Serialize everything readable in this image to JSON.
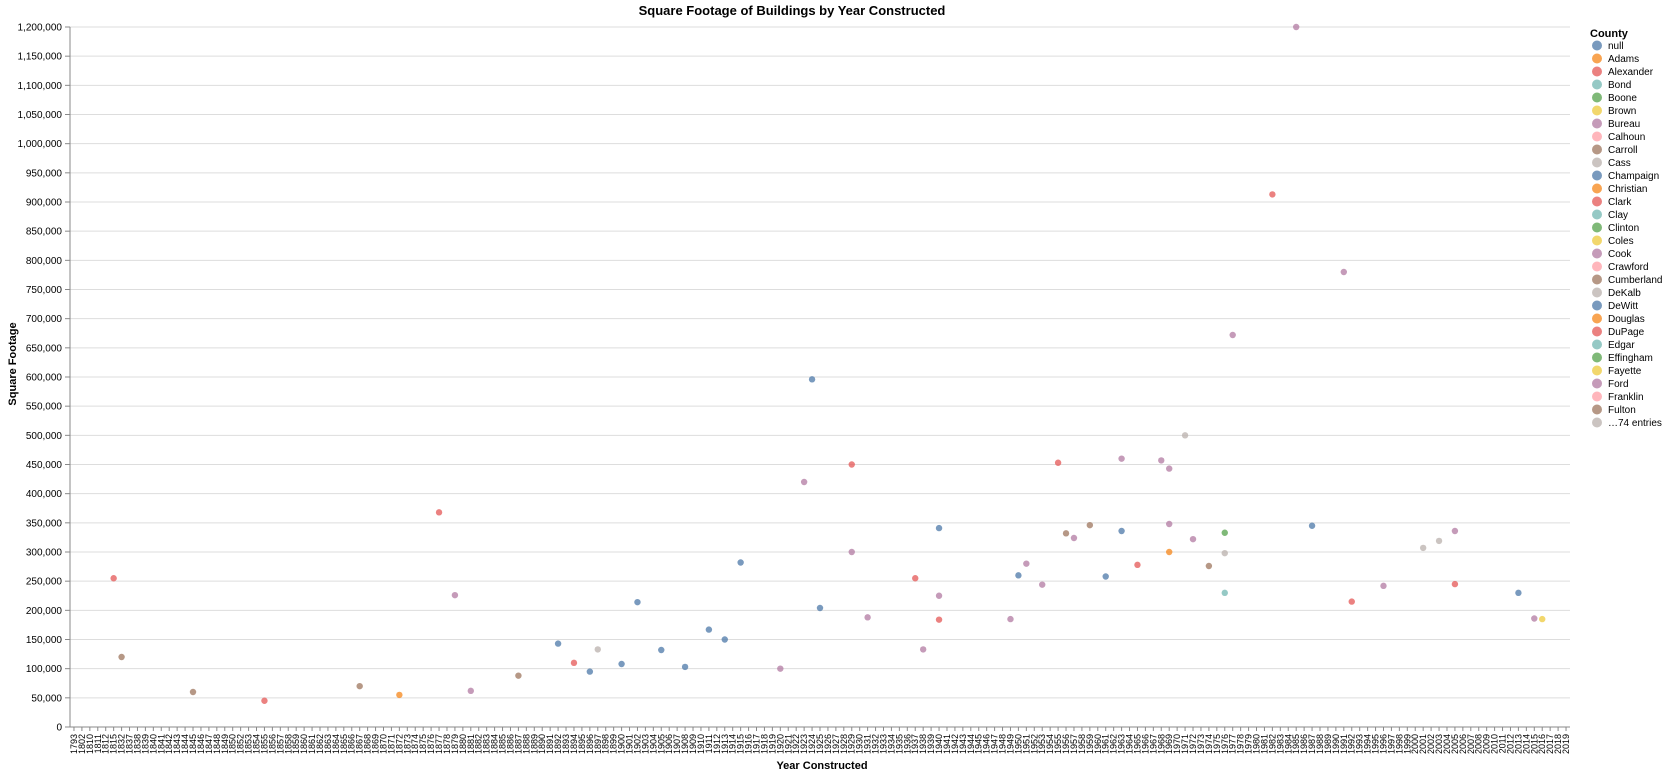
{
  "chart_data": {
    "type": "scatter",
    "title": "Square Footage of Buildings by Year Constructed",
    "xlabel": "Year Constructed",
    "ylabel": "Square Footage",
    "ylim": [
      0,
      1200000
    ],
    "y_ticks": [
      "0",
      "50,000",
      "100,000",
      "150,000",
      "200,000",
      "250,000",
      "300,000",
      "350,000",
      "400,000",
      "450,000",
      "500,000",
      "550,000",
      "600,000",
      "650,000",
      "700,000",
      "750,000",
      "800,000",
      "850,000",
      "900,000",
      "950,000",
      "1,000,000",
      "1,050,000",
      "1,100,000",
      "1,150,000",
      "1,200,000"
    ],
    "x_categories": [
      "1793",
      "1802",
      "1810",
      "1811",
      "1812",
      "1815",
      "1832",
      "1837",
      "1838",
      "1839",
      "1840",
      "1841",
      "1842",
      "1843",
      "1844",
      "1845",
      "1846",
      "1847",
      "1848",
      "1849",
      "1850",
      "1852",
      "1853",
      "1854",
      "1855",
      "1856",
      "1857",
      "1858",
      "1859",
      "1860",
      "1861",
      "1862",
      "1863",
      "1864",
      "1865",
      "1866",
      "1867",
      "1868",
      "1869",
      "1870",
      "1871",
      "1872",
      "1873",
      "1874",
      "1875",
      "1876",
      "1877",
      "1878",
      "1879",
      "1880",
      "1881",
      "1882",
      "1883",
      "1884",
      "1885",
      "1886",
      "1887",
      "1888",
      "1889",
      "1890",
      "1891",
      "1892",
      "1893",
      "1894",
      "1895",
      "1896",
      "1897",
      "1898",
      "1899",
      "1900",
      "1901",
      "1902",
      "1903",
      "1904",
      "1905",
      "1906",
      "1907",
      "1908",
      "1909",
      "1910",
      "1911",
      "1912",
      "1913",
      "1914",
      "1915",
      "1916",
      "1917",
      "1918",
      "1919",
      "1920",
      "1921",
      "1922",
      "1923",
      "1924",
      "1925",
      "1926",
      "1927",
      "1928",
      "1929",
      "1930",
      "1931",
      "1932",
      "1933",
      "1934",
      "1935",
      "1936",
      "1937",
      "1938",
      "1939",
      "1940",
      "1941",
      "1942",
      "1943",
      "1944",
      "1945",
      "1946",
      "1947",
      "1948",
      "1949",
      "1950",
      "1951",
      "1952",
      "1953",
      "1954",
      "1955",
      "1956",
      "1957",
      "1958",
      "1959",
      "1960",
      "1961",
      "1962",
      "1963",
      "1964",
      "1965",
      "1966",
      "1967",
      "1968",
      "1969",
      "1970",
      "1971",
      "1972",
      "1973",
      "1974",
      "1975",
      "1976",
      "1977",
      "1978",
      "1979",
      "1980",
      "1981",
      "1982",
      "1983",
      "1984",
      "1985",
      "1986",
      "1987",
      "1988",
      "1989",
      "1990",
      "1991",
      "1992",
      "1993",
      "1994",
      "1995",
      "1996",
      "1997",
      "1998",
      "1999",
      "2000",
      "2001",
      "2002",
      "2003",
      "2004",
      "2005",
      "2006",
      "2007",
      "2008",
      "2009",
      "2010",
      "2011",
      "2012",
      "2013",
      "2014",
      "2015",
      "2016",
      "2017",
      "2018",
      "2019"
    ],
    "legend": {
      "title": "County",
      "placement": "right",
      "entries": [
        {
          "name": "null",
          "color": "#4c78a8"
        },
        {
          "name": "Adams",
          "color": "#f58518"
        },
        {
          "name": "Alexander",
          "color": "#e45756"
        },
        {
          "name": "Bond",
          "color": "#72b7b2"
        },
        {
          "name": "Boone",
          "color": "#54a24b"
        },
        {
          "name": "Brown",
          "color": "#eeca3b"
        },
        {
          "name": "Bureau",
          "color": "#b279a2"
        },
        {
          "name": "Calhoun",
          "color": "#ff9da6"
        },
        {
          "name": "Carroll",
          "color": "#9d755d"
        },
        {
          "name": "Cass",
          "color": "#bab0ac"
        },
        {
          "name": "Champaign",
          "color": "#4c78a8"
        },
        {
          "name": "Christian",
          "color": "#f58518"
        },
        {
          "name": "Clark",
          "color": "#e45756"
        },
        {
          "name": "Clay",
          "color": "#72b7b2"
        },
        {
          "name": "Clinton",
          "color": "#54a24b"
        },
        {
          "name": "Coles",
          "color": "#eeca3b"
        },
        {
          "name": "Cook",
          "color": "#b279a2"
        },
        {
          "name": "Crawford",
          "color": "#ff9da6"
        },
        {
          "name": "Cumberland",
          "color": "#9d755d"
        },
        {
          "name": "DeKalb",
          "color": "#bab0ac"
        },
        {
          "name": "DeWitt",
          "color": "#4c78a8"
        },
        {
          "name": "Douglas",
          "color": "#f58518"
        },
        {
          "name": "DuPage",
          "color": "#e45756"
        },
        {
          "name": "Edgar",
          "color": "#72b7b2"
        },
        {
          "name": "Effingham",
          "color": "#54a24b"
        },
        {
          "name": "Fayette",
          "color": "#eeca3b"
        },
        {
          "name": "Ford",
          "color": "#b279a2"
        },
        {
          "name": "Franklin",
          "color": "#ff9da6"
        },
        {
          "name": "Fulton",
          "color": "#9d755d"
        },
        {
          "name": "…74 entries",
          "color": "#bab0ac"
        }
      ]
    },
    "series": [
      {
        "name": "notable_points",
        "points": [
          {
            "x": "1815",
            "y": 255000,
            "c": 2
          },
          {
            "x": "1832",
            "y": 120000,
            "c": 8
          },
          {
            "x": "1845",
            "y": 60000,
            "c": 8
          },
          {
            "x": "1855",
            "y": 45000,
            "c": 2
          },
          {
            "x": "1867",
            "y": 70000,
            "c": 8
          },
          {
            "x": "1872",
            "y": 55000,
            "c": 1
          },
          {
            "x": "1877",
            "y": 368000,
            "c": 2
          },
          {
            "x": "1879",
            "y": 226000,
            "c": 6
          },
          {
            "x": "1881",
            "y": 62000,
            "c": 6
          },
          {
            "x": "1887",
            "y": 88000,
            "c": 8
          },
          {
            "x": "1892",
            "y": 143000,
            "c": 0
          },
          {
            "x": "1894",
            "y": 110000,
            "c": 2
          },
          {
            "x": "1896",
            "y": 95000,
            "c": 0
          },
          {
            "x": "1897",
            "y": 133000,
            "c": 9
          },
          {
            "x": "1900",
            "y": 108000,
            "c": 0
          },
          {
            "x": "1902",
            "y": 214000,
            "c": 0
          },
          {
            "x": "1905",
            "y": 132000,
            "c": 0
          },
          {
            "x": "1908",
            "y": 103000,
            "c": 0
          },
          {
            "x": "1911",
            "y": 167000,
            "c": 0
          },
          {
            "x": "1913",
            "y": 150000,
            "c": 0
          },
          {
            "x": "1915",
            "y": 282000,
            "c": 0
          },
          {
            "x": "1920",
            "y": 100000,
            "c": 6
          },
          {
            "x": "1923",
            "y": 420000,
            "c": 6
          },
          {
            "x": "1924",
            "y": 596000,
            "c": 0
          },
          {
            "x": "1925",
            "y": 204000,
            "c": 0
          },
          {
            "x": "1929",
            "y": 450000,
            "c": 2
          },
          {
            "x": "1929",
            "y": 300000,
            "c": 6
          },
          {
            "x": "1931",
            "y": 188000,
            "c": 6
          },
          {
            "x": "1937",
            "y": 255000,
            "c": 2
          },
          {
            "x": "1938",
            "y": 133000,
            "c": 6
          },
          {
            "x": "1940",
            "y": 341000,
            "c": 0
          },
          {
            "x": "1940",
            "y": 225000,
            "c": 6
          },
          {
            "x": "1940",
            "y": 184000,
            "c": 2
          },
          {
            "x": "1949",
            "y": 185000,
            "c": 6
          },
          {
            "x": "1950",
            "y": 260000,
            "c": 0
          },
          {
            "x": "1951",
            "y": 280000,
            "c": 6
          },
          {
            "x": "1953",
            "y": 244000,
            "c": 6
          },
          {
            "x": "1955",
            "y": 453000,
            "c": 2
          },
          {
            "x": "1956",
            "y": 332000,
            "c": 8
          },
          {
            "x": "1957",
            "y": 324000,
            "c": 6
          },
          {
            "x": "1959",
            "y": 346000,
            "c": 8
          },
          {
            "x": "1961",
            "y": 258000,
            "c": 0
          },
          {
            "x": "1963",
            "y": 460000,
            "c": 6
          },
          {
            "x": "1963",
            "y": 336000,
            "c": 0
          },
          {
            "x": "1965",
            "y": 278000,
            "c": 2
          },
          {
            "x": "1968",
            "y": 457000,
            "c": 6
          },
          {
            "x": "1969",
            "y": 443000,
            "c": 6
          },
          {
            "x": "1969",
            "y": 348000,
            "c": 6
          },
          {
            "x": "1969",
            "y": 300000,
            "c": 1
          },
          {
            "x": "1971",
            "y": 500000,
            "c": 9
          },
          {
            "x": "1972",
            "y": 322000,
            "c": 6
          },
          {
            "x": "1974",
            "y": 276000,
            "c": 8
          },
          {
            "x": "1976",
            "y": 333000,
            "c": 4
          },
          {
            "x": "1976",
            "y": 298000,
            "c": 9
          },
          {
            "x": "1976",
            "y": 230000,
            "c": 3
          },
          {
            "x": "1977",
            "y": 672000,
            "c": 6
          },
          {
            "x": "1982",
            "y": 913000,
            "c": 2
          },
          {
            "x": "1985",
            "y": 1200000,
            "c": 6
          },
          {
            "x": "1987",
            "y": 345000,
            "c": 0
          },
          {
            "x": "1991",
            "y": 780000,
            "c": 6
          },
          {
            "x": "1992",
            "y": 215000,
            "c": 2
          },
          {
            "x": "1996",
            "y": 242000,
            "c": 6
          },
          {
            "x": "2001",
            "y": 307000,
            "c": 9
          },
          {
            "x": "2003",
            "y": 319000,
            "c": 9
          },
          {
            "x": "2005",
            "y": 336000,
            "c": 6
          },
          {
            "x": "2005",
            "y": 245000,
            "c": 2
          },
          {
            "x": "2013",
            "y": 230000,
            "c": 0
          },
          {
            "x": "2015",
            "y": 186000,
            "c": 6
          },
          {
            "x": "2016",
            "y": 185000,
            "c": 5
          }
        ]
      }
    ],
    "grid": true
  }
}
